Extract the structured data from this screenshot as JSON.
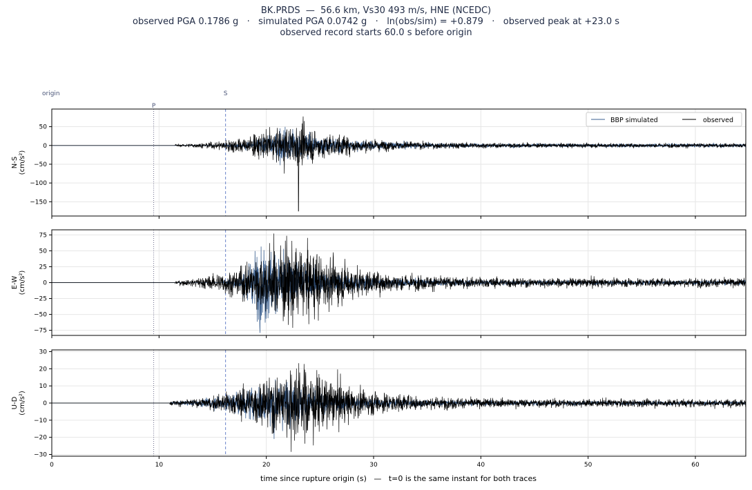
{
  "header": {
    "line1": "BK.PRDS  —  56.6 km, Vs30 493 m/s, HNE (NCEDC)",
    "line2": "observed PGA 0.1786 g   ·   simulated PGA 0.0742 g   ·   ln(obs/sim) = +0.879   ·   observed peak at +23.0 s",
    "line3": "observed record starts 60.0 s before origin"
  },
  "colors": {
    "observed": "#000000",
    "simulated": "#3a5f8f",
    "p_line": "#6b6b8a",
    "s_line": "#6a83c8",
    "grid": "#e6e6e6",
    "marker_text": "#4a5578"
  },
  "chart_data": {
    "type": "line",
    "xlabel": "time since rupture origin (s)   —   t=0 is the same instant for both traces",
    "xlim": [
      0,
      64.7
    ],
    "xticks": [
      0,
      10,
      20,
      30,
      40,
      50,
      60
    ],
    "grid": true,
    "legend": {
      "placement": "top-right",
      "entries": [
        "BBP simulated",
        "observed"
      ]
    },
    "markers": [
      {
        "label": "origin",
        "t": 0
      },
      {
        "label": "P",
        "t": 9.5,
        "style": "dotted"
      },
      {
        "label": "S",
        "t": 16.2,
        "style": "dashed"
      }
    ],
    "panels": [
      {
        "ylabel": "N-S\n(cm/s²)",
        "ylim": [
          -188,
          97
        ],
        "yticks": [
          50,
          0,
          -50,
          -100,
          -150
        ],
        "series": [
          {
            "name": "BBP simulated",
            "onset": 16.0,
            "peak_time": 21.5,
            "amp": 42,
            "tail": 4
          },
          {
            "name": "observed",
            "onset": 11.5,
            "peak_time": 22.6,
            "amp": 55,
            "tail": 5,
            "spike": {
              "t": 23.0,
              "value": -175
            }
          }
        ]
      },
      {
        "ylabel": "E-W\n(cm/s²)",
        "ylim": [
          -83,
          83
        ],
        "yticks": [
          75,
          50,
          25,
          0,
          -25,
          -50,
          -75
        ],
        "series": [
          {
            "name": "BBP simulated",
            "onset": 16.0,
            "peak_time": 19.5,
            "amp": 55,
            "tail": 3
          },
          {
            "name": "observed",
            "onset": 11.5,
            "peak_time": 22.5,
            "amp": 65,
            "tail": 6
          }
        ]
      },
      {
        "ylabel": "U-D\n(cm/s²)",
        "ylim": [
          -31,
          31
        ],
        "yticks": [
          30,
          20,
          10,
          0,
          -10,
          -20,
          -30
        ],
        "series": [
          {
            "name": "BBP simulated",
            "onset": 11.0,
            "peak_time": 21.0,
            "amp": 13,
            "tail": 1
          },
          {
            "name": "observed",
            "onset": 11.0,
            "peak_time": 23.0,
            "amp": 22,
            "tail": 2
          }
        ]
      }
    ]
  }
}
